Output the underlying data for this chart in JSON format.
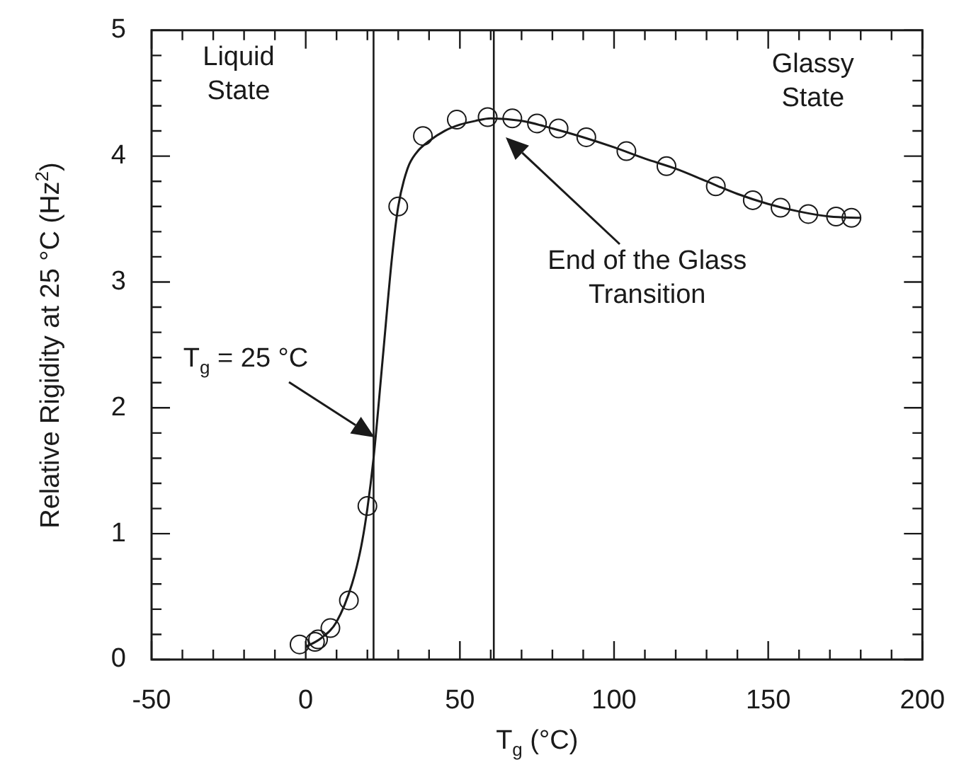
{
  "chart_data": {
    "type": "scatter",
    "xlabel": "T$_{g}$ (°C)",
    "ylabel": "Relative Rigidity at 25 °C (Hz$^{2}$)",
    "xlim": [
      -50,
      200
    ],
    "ylim": [
      0,
      5
    ],
    "xticks": [
      -50,
      {
        "value": -40,
        "label": null
      },
      {
        "value": -30,
        "label": null
      },
      {
        "value": -20,
        "label": null
      },
      {
        "value": -10,
        "label": null
      },
      0,
      {
        "value": 10,
        "label": null
      },
      {
        "value": 20,
        "label": null
      },
      {
        "value": 30,
        "label": null
      },
      {
        "value": 40,
        "label": null
      },
      50,
      {
        "value": 60,
        "label": null
      },
      {
        "value": 70,
        "label": null
      },
      {
        "value": 80,
        "label": null
      },
      {
        "value": 90,
        "label": null
      },
      100,
      {
        "value": 110,
        "label": null
      },
      {
        "value": 120,
        "label": null
      },
      {
        "value": 130,
        "label": null
      },
      {
        "value": 140,
        "label": null
      },
      150,
      {
        "value": 160,
        "label": null
      },
      {
        "value": 170,
        "label": null
      },
      {
        "value": 180,
        "label": null
      },
      {
        "value": 190,
        "label": null
      },
      200
    ],
    "yticks": [
      0,
      {
        "value": 0.2,
        "label": null
      },
      {
        "value": 0.4,
        "label": null
      },
      {
        "value": 0.6,
        "label": null
      },
      {
        "value": 0.8,
        "label": null
      },
      1,
      {
        "value": 1.2,
        "label": null
      },
      {
        "value": 1.4,
        "label": null
      },
      {
        "value": 1.6,
        "label": null
      },
      {
        "value": 1.8,
        "label": null
      },
      2,
      {
        "value": 2.2,
        "label": null
      },
      {
        "value": 2.4,
        "label": null
      },
      {
        "value": 2.6,
        "label": null
      },
      {
        "value": 2.8,
        "label": null
      },
      3,
      {
        "value": 3.2,
        "label": null
      },
      {
        "value": 3.4,
        "label": null
      },
      {
        "value": 3.6,
        "label": null
      },
      {
        "value": 3.8,
        "label": null
      },
      4,
      {
        "value": 4.2,
        "label": null
      },
      {
        "value": 4.4,
        "label": null
      },
      {
        "value": 4.6,
        "label": null
      },
      {
        "value": 4.8,
        "label": null
      },
      5
    ],
    "grid": false,
    "legend": false,
    "series": [
      {
        "marker": "circle",
        "color": "#1a1a1a",
        "x": [
          -2,
          3,
          4,
          8,
          14,
          20,
          30,
          38,
          49,
          59,
          67,
          75,
          82,
          91,
          104,
          117,
          133,
          145,
          154,
          163,
          172,
          177
        ],
        "values": [
          0.12,
          0.14,
          0.16,
          0.25,
          0.47,
          1.22,
          3.6,
          4.16,
          4.29,
          4.31,
          4.3,
          4.26,
          4.22,
          4.15,
          4.04,
          3.92,
          3.76,
          3.65,
          3.59,
          3.54,
          3.52,
          3.51
        ]
      },
      {
        "type": "line",
        "marker": "none",
        "color": "#1a1a1a",
        "x": [
          0,
          5,
          10,
          15,
          18,
          20,
          22,
          25,
          28,
          30,
          33,
          36,
          40,
          45,
          50,
          55,
          60,
          70,
          80,
          90,
          100,
          110,
          120,
          130,
          140,
          150,
          160,
          170,
          180
        ],
        "values": [
          0.1,
          0.17,
          0.3,
          0.6,
          0.9,
          1.2,
          1.6,
          2.4,
          3.2,
          3.6,
          3.9,
          4.03,
          4.12,
          4.2,
          4.25,
          4.28,
          4.3,
          4.28,
          4.22,
          4.15,
          4.07,
          3.98,
          3.9,
          3.8,
          3.7,
          3.62,
          3.56,
          3.52,
          3.51
        ]
      }
    ],
    "ref_lines": [
      {
        "axis": "x",
        "value": 22,
        "color": "#1a1a1a"
      },
      {
        "axis": "x",
        "value": 61,
        "color": "#1a1a1a"
      }
    ],
    "annotations": [
      "Liquid State",
      "Glassy State",
      "T$_{g}$ = 25 °C",
      "End of the Glass Transition"
    ]
  }
}
